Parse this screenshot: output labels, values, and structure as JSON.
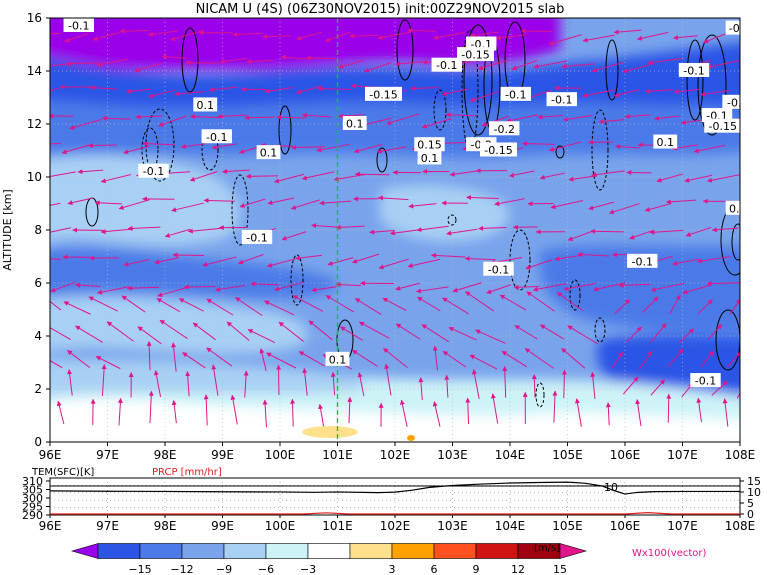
{
  "title": "NICAM U (4S) (06Z30NOV2015) init:00Z29NOV2015 slab",
  "colors": {
    "wind_vector": "#e0158a",
    "prcp_label": "#e02020",
    "vertical_line": "#22bb22",
    "contour": "#000000"
  },
  "chart_data": [
    {
      "type": "heatmap",
      "name": "u-wind-cross-section",
      "ylabel": "ALTITUDE [km]",
      "xlim": [
        96,
        108
      ],
      "ylim": [
        0,
        16
      ],
      "x_ticks": [
        "96E",
        "97E",
        "98E",
        "99E",
        "100E",
        "101E",
        "102E",
        "103E",
        "104E",
        "105E",
        "106E",
        "107E",
        "108E"
      ],
      "y_ticks": [
        "0",
        "2",
        "4",
        "6",
        "8",
        "10",
        "12",
        "14",
        "16"
      ],
      "marker_line_lon": 101,
      "contour_labels": [
        {
          "text": "-0.1",
          "lon": 96.5,
          "alt": 15.7
        },
        {
          "text": "0.1",
          "lon": 98.7,
          "alt": 12.7
        },
        {
          "text": "-0.1",
          "lon": 98.9,
          "alt": 11.5
        },
        {
          "text": "0.1",
          "lon": 99.8,
          "alt": 10.9
        },
        {
          "text": "-0.1",
          "lon": 97.8,
          "alt": 10.2
        },
        {
          "text": "-0.1",
          "lon": 99.6,
          "alt": 7.7
        },
        {
          "text": "0.1",
          "lon": 101.3,
          "alt": 12.0
        },
        {
          "text": "-0.15",
          "lon": 101.8,
          "alt": 13.1
        },
        {
          "text": "-0.1",
          "lon": 102.9,
          "alt": 14.2
        },
        {
          "text": "-0.1",
          "lon": 103.5,
          "alt": 15.0
        },
        {
          "text": "-0.15",
          "lon": 103.4,
          "alt": 14.6
        },
        {
          "text": "-0.1",
          "lon": 104.1,
          "alt": 13.1
        },
        {
          "text": "-0.1",
          "lon": 104.9,
          "alt": 12.9
        },
        {
          "text": "0.15",
          "lon": 102.6,
          "alt": 11.2
        },
        {
          "text": "0.1",
          "lon": 102.6,
          "alt": 10.7
        },
        {
          "text": "-0.2",
          "lon": 103.5,
          "alt": 11.2
        },
        {
          "text": "-0.2",
          "lon": 103.9,
          "alt": 11.8
        },
        {
          "text": "-0.15",
          "lon": 103.8,
          "alt": 11.0
        },
        {
          "text": "0.1",
          "lon": 106.7,
          "alt": 11.3
        },
        {
          "text": "-0.1",
          "lon": 107.2,
          "alt": 14.0
        },
        {
          "text": "-0.",
          "lon": 107.9,
          "alt": 12.8
        },
        {
          "text": "-0.1",
          "lon": 107.6,
          "alt": 12.3
        },
        {
          "text": "-0.15",
          "lon": 107.7,
          "alt": 11.9
        },
        {
          "text": "-0.1",
          "lon": 103.8,
          "alt": 6.5
        },
        {
          "text": "-0.1",
          "lon": 106.3,
          "alt": 6.8
        },
        {
          "text": "-0.1",
          "lon": 107.4,
          "alt": 2.3
        },
        {
          "text": "0.1",
          "lon": 101.0,
          "alt": 3.1
        },
        {
          "text": "0.",
          "lon": 107.9,
          "alt": 8.8
        },
        {
          "text": "-0",
          "lon": 107.9,
          "alt": 15.6
        }
      ]
    },
    {
      "type": "line",
      "name": "surface-panel",
      "x_ticks": [
        "96E",
        "97E",
        "98E",
        "99E",
        "100E",
        "101E",
        "102E",
        "103E",
        "104E",
        "105E",
        "106E",
        "107E",
        "108E"
      ],
      "left_label": "TEM(SFC)[K]",
      "right_label": "PRCP [mm/hr]",
      "left_ticks": [
        "310",
        "305",
        "300",
        "295",
        "290"
      ],
      "right_ticks": [
        "15",
        "10",
        "5",
        "0"
      ],
      "inline_label": "10",
      "series": [
        {
          "name": "TEM(SFC)[K]",
          "x": [
            96,
            97,
            98,
            99,
            100,
            100.6,
            101,
            101.7,
            102,
            102.3,
            102.6,
            103,
            103.5,
            104,
            104.5,
            105,
            105.3,
            105.6,
            105.8,
            106,
            106.2,
            106.5,
            107,
            108
          ],
          "values": [
            303.2,
            303.0,
            302.9,
            302.7,
            302.6,
            302.4,
            302.6,
            302.2,
            302.5,
            303.6,
            305.2,
            306.3,
            307.1,
            307.7,
            308.0,
            308.2,
            307.6,
            306.0,
            303.5,
            301.4,
            302.3,
            302.8,
            302.9,
            302.9
          ]
        },
        {
          "name": "PRCP [mm/hr]",
          "x": [
            96,
            100.4,
            100.8,
            101.2,
            102,
            104,
            106,
            106.4,
            106.8,
            108
          ],
          "values": [
            0,
            0,
            0.5,
            0,
            0,
            0,
            0,
            0.6,
            0,
            0
          ]
        }
      ]
    },
    {
      "type": "bar",
      "name": "colorbar",
      "tick_labels": [
        "-15",
        "-12",
        "-9",
        "-6",
        "-3",
        "3",
        "6",
        "9",
        "12",
        "15"
      ],
      "unit": "[m/s]",
      "vector_label": "Wx100(vector)",
      "colors": [
        "#9a00ea",
        "#2c55e6",
        "#4c7ae8",
        "#79a4ec",
        "#a8d0f4",
        "#cdf3f7",
        "#ffffff",
        "#ffe08c",
        "#ffa200",
        "#ff5020",
        "#d01414",
        "#a00010",
        "#e0158a"
      ]
    }
  ]
}
